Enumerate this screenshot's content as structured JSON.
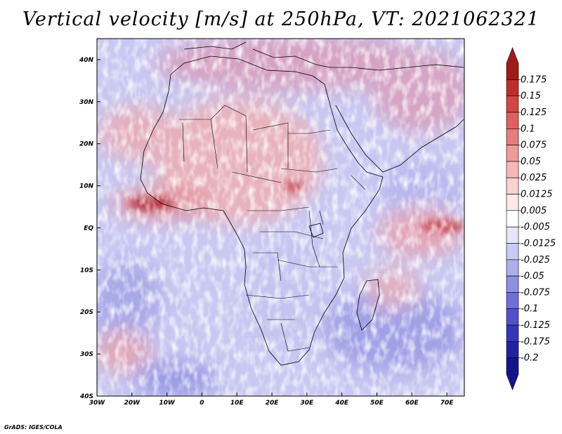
{
  "title": "Vertical velocity [m/s] at 250hPa, VT: 2021062321",
  "credit": "GrADS: IGES/COLA",
  "map": {
    "lon_range": [
      -30,
      75
    ],
    "lat_range": [
      -40,
      45
    ],
    "lon_ticks": [
      {
        "value": -30,
        "label": "30W"
      },
      {
        "value": -20,
        "label": "20W"
      },
      {
        "value": -10,
        "label": "10W"
      },
      {
        "value": 0,
        "label": "0"
      },
      {
        "value": 10,
        "label": "10E"
      },
      {
        "value": 20,
        "label": "20E"
      },
      {
        "value": 30,
        "label": "30E"
      },
      {
        "value": 40,
        "label": "40E"
      },
      {
        "value": 50,
        "label": "50E"
      },
      {
        "value": 60,
        "label": "60E"
      },
      {
        "value": 70,
        "label": "70E"
      }
    ],
    "lat_ticks": [
      {
        "value": 40,
        "label": "40N"
      },
      {
        "value": 30,
        "label": "30N"
      },
      {
        "value": 20,
        "label": "20N"
      },
      {
        "value": 10,
        "label": "10N"
      },
      {
        "value": 0,
        "label": "EQ"
      },
      {
        "value": -10,
        "label": "10S"
      },
      {
        "value": -20,
        "label": "20S"
      },
      {
        "value": -30,
        "label": "30S"
      },
      {
        "value": -40,
        "label": "40S"
      }
    ]
  },
  "colorbar": {
    "labels": [
      "0.175",
      "0.15",
      "0.125",
      "0.1",
      "0.075",
      "0.05",
      "0.025",
      "0.0125",
      "0.005",
      "-0.005",
      "-0.0125",
      "-0.025",
      "-0.05",
      "-0.075",
      "-0.1",
      "-0.125",
      "-0.175",
      "-0.2"
    ],
    "colors": [
      "#a01a1a",
      "#c02c2c",
      "#d34444",
      "#e06060",
      "#e87c7c",
      "#ef9a9a",
      "#f5b8b8",
      "#f9d2d2",
      "#fce9e9",
      "#ffffff",
      "#e6e6f8",
      "#cacaf2",
      "#aeaeec",
      "#8f8fe4",
      "#6f6fdb",
      "#5050cc",
      "#3535b8",
      "#2222a0",
      "#14148a"
    ]
  }
}
